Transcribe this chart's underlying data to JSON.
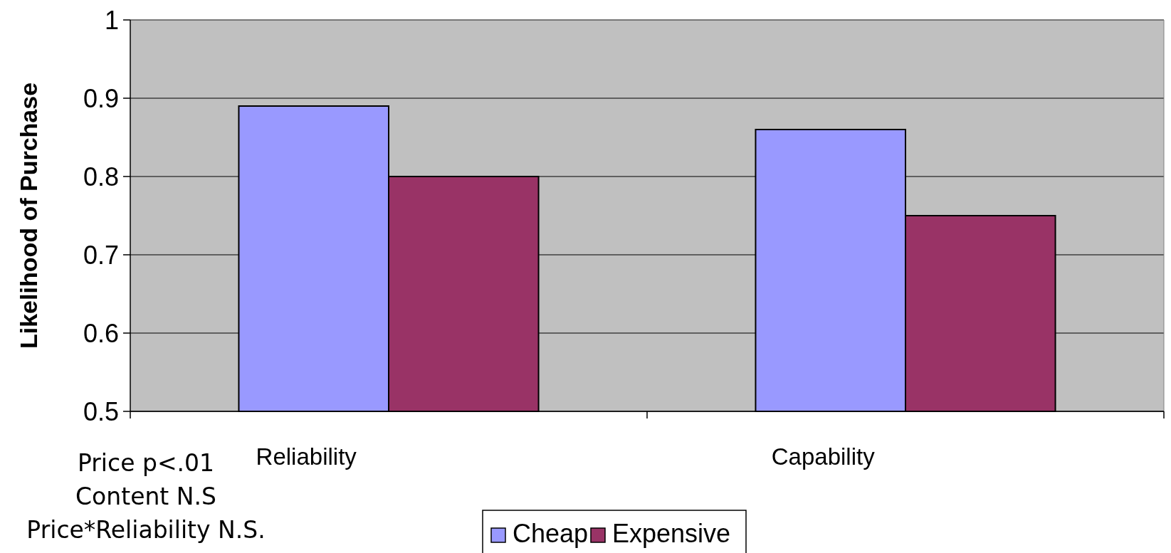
{
  "chart_data": {
    "type": "bar",
    "ylabel": "Likelihood of Purchase",
    "categories": [
      "Reliability",
      "Capability"
    ],
    "series": [
      {
        "name": "Cheap",
        "color": "#9999ff",
        "values": [
          0.89,
          0.86
        ]
      },
      {
        "name": "Expensive",
        "color": "#993366",
        "values": [
          0.8,
          0.75
        ]
      }
    ],
    "ylim": [
      0.5,
      1
    ],
    "yticks": [
      0.5,
      0.6,
      0.7,
      0.8,
      0.9,
      1
    ],
    "grid": "y",
    "legend": "bottom",
    "annotations": [
      "Price p<.01",
      "Content N.S",
      "Price*Reliability  N.S."
    ]
  }
}
